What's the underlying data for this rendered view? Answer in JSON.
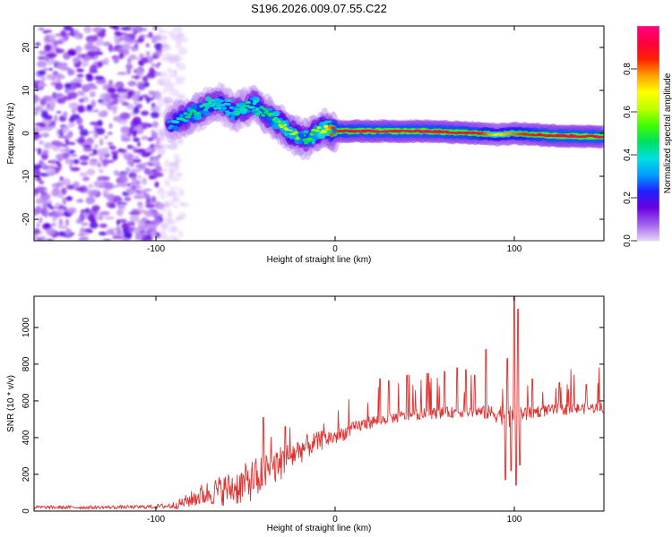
{
  "figure_title": "S196.2026.009.07.55.C22",
  "chart_data": [
    {
      "type": "heatmap",
      "title": "S196.2026.009.07.55.C22",
      "xlabel": "Height of straight line (km)",
      "ylabel": "Frequency (Hz)",
      "xlim": [
        -168,
        150
      ],
      "ylim": [
        -25,
        25
      ],
      "xticks": [
        -100,
        0,
        100
      ],
      "yticks": [
        -20,
        -10,
        0,
        10,
        20
      ],
      "colorbar": {
        "label": "Normalized spectral amplitude",
        "range": [
          0,
          1
        ],
        "ticks": [
          0.0,
          0.2,
          0.4,
          0.6,
          0.8
        ],
        "tick_labels": [
          "0.0",
          "0.2",
          "0.4",
          "0.6",
          "0.8"
        ],
        "colormap": [
          "#e8d4f8",
          "#a060f0",
          "#6a00e0",
          "#2020ff",
          "#00a0ff",
          "#00e0e0",
          "#00e060",
          "#40ff00",
          "#c0ff00",
          "#ffff00",
          "#ffa000",
          "#ff2000",
          "#ff0040",
          "#ff0080"
        ]
      },
      "noise_region_x": [
        -168,
        -90
      ],
      "ridge": {
        "x": [
          -93,
          -88,
          -82,
          -76,
          -70,
          -65,
          -60,
          -55,
          -50,
          -45,
          -40,
          -35,
          -30,
          -25,
          -20,
          -16,
          -12,
          -6,
          0,
          20,
          50,
          80,
          90,
          100,
          120,
          150
        ],
        "freq": [
          2,
          3,
          4,
          5,
          6.5,
          7,
          6,
          5,
          6,
          7,
          5,
          3.5,
          2,
          0.5,
          -1,
          -1.5,
          0,
          1,
          0.5,
          0.5,
          0.5,
          0,
          -0.3,
          0,
          -0.5,
          -0.8
        ],
        "strength": [
          0.3,
          0.4,
          0.45,
          0.45,
          0.4,
          0.4,
          0.35,
          0.4,
          0.45,
          0.4,
          0.45,
          0.5,
          0.6,
          0.65,
          0.55,
          0.45,
          0.55,
          0.65,
          0.9,
          0.95,
          0.95,
          0.9,
          0.7,
          0.8,
          0.95,
          0.95
        ]
      }
    },
    {
      "type": "line",
      "xlabel": "Height of straight line (km)",
      "ylabel": "SNR (10 * v/v)",
      "xlim": [
        -168,
        150
      ],
      "ylim": [
        0,
        1170
      ],
      "xticks": [
        -100,
        0,
        100
      ],
      "yticks": [
        0,
        200,
        400,
        600,
        800,
        1000
      ],
      "series": [
        {
          "name": "SNR",
          "color": "#e03030",
          "x": [
            -168,
            -150,
            -130,
            -110,
            -100,
            -90,
            -85,
            -80,
            -75,
            -70,
            -65,
            -60,
            -55,
            -50,
            -45,
            -40,
            -35,
            -30,
            -25,
            -20,
            -15,
            -10,
            -5,
            0,
            5,
            10,
            15,
            20,
            25,
            30,
            40,
            50,
            60,
            70,
            80,
            85,
            90,
            95,
            100,
            105,
            110,
            120,
            130,
            140,
            150
          ],
          "baseline": [
            20,
            20,
            20,
            22,
            24,
            30,
            45,
            65,
            85,
            100,
            110,
            120,
            130,
            150,
            175,
            205,
            235,
            265,
            300,
            330,
            355,
            375,
            395,
            405,
            425,
            450,
            470,
            485,
            495,
            505,
            520,
            530,
            535,
            540,
            540,
            535,
            530,
            525,
            520,
            530,
            540,
            550,
            555,
            560,
            565
          ],
          "noise": [
            10,
            10,
            10,
            10,
            12,
            20,
            30,
            45,
            60,
            70,
            80,
            90,
            100,
            110,
            110,
            110,
            100,
            95,
            85,
            75,
            65,
            55,
            50,
            45,
            40,
            35,
            35,
            35,
            30,
            30,
            30,
            30,
            30,
            30,
            30,
            40,
            50,
            60,
            70,
            50,
            35,
            30,
            30,
            30,
            30
          ]
        }
      ],
      "spikes": [
        {
          "x": -40,
          "y": 510
        },
        {
          "x": -28,
          "y": 460
        },
        {
          "x": 25,
          "y": 720
        },
        {
          "x": 30,
          "y": 710
        },
        {
          "x": 40,
          "y": 740
        },
        {
          "x": 52,
          "y": 750
        },
        {
          "x": 61,
          "y": 760
        },
        {
          "x": 68,
          "y": 780
        },
        {
          "x": 73,
          "y": 770
        },
        {
          "x": 78,
          "y": 740
        },
        {
          "x": 84,
          "y": 880
        },
        {
          "x": 96,
          "y": 830
        },
        {
          "x": 100,
          "y": 1170
        },
        {
          "x": 102,
          "y": 1100
        },
        {
          "x": 110,
          "y": 720
        },
        {
          "x": 125,
          "y": 700
        },
        {
          "x": 140,
          "y": 690
        }
      ],
      "dips": [
        {
          "x": 95,
          "y": 170
        },
        {
          "x": 98,
          "y": 220
        },
        {
          "x": 101,
          "y": 140
        },
        {
          "x": 103,
          "y": 250
        }
      ]
    }
  ]
}
